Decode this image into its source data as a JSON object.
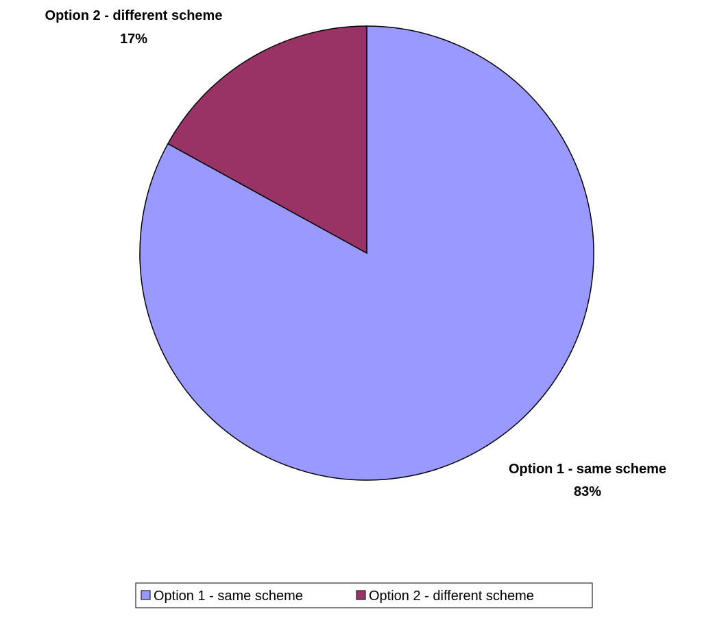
{
  "chart_data": {
    "type": "pie",
    "slices": [
      {
        "label": "Option 1 - same scheme",
        "value": 83,
        "value_label": "83%",
        "color": "#9999FF"
      },
      {
        "label": "Option 2 - different scheme",
        "value": 17,
        "value_label": "17%",
        "color": "#993366"
      }
    ],
    "legend": {
      "placement": "bottom",
      "entries": [
        "Option 1 - same scheme",
        "Option 2 - different scheme"
      ]
    },
    "stroke_color": "#000000",
    "background": "#FFFFFF"
  }
}
